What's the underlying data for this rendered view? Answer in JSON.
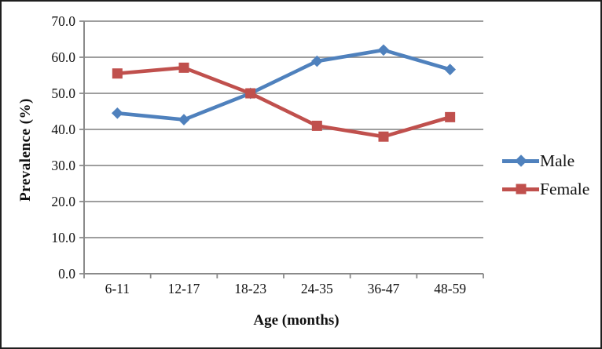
{
  "figure": {
    "background": "#ffffff",
    "border_color": "#1f1f1f"
  },
  "chart_data": {
    "type": "line",
    "title": "",
    "xlabel": "Age (months)",
    "ylabel": "Prevalence (%)",
    "categories": [
      "6-11",
      "12-17",
      "18-23",
      "24-35",
      "36-47",
      "48-59"
    ],
    "series": [
      {
        "name": "Male",
        "color": "#4F81BD",
        "marker": "diamond",
        "values": [
          44.5,
          42.7,
          50.0,
          58.9,
          62.0,
          56.6
        ]
      },
      {
        "name": "Female",
        "color": "#C0504D",
        "marker": "square",
        "values": [
          55.5,
          57.1,
          50.0,
          41.0,
          38.0,
          43.4
        ]
      }
    ],
    "ylim": [
      0,
      70
    ],
    "ytick_step": 10,
    "ytick_labels": [
      "0.0",
      "10.0",
      "20.0",
      "30.0",
      "40.0",
      "50.0",
      "60.0",
      "70.0"
    ],
    "grid": true,
    "legend_position": "right",
    "axis_color": "#8a8a8a",
    "grid_color": "#909090",
    "text_color": "#111111"
  }
}
